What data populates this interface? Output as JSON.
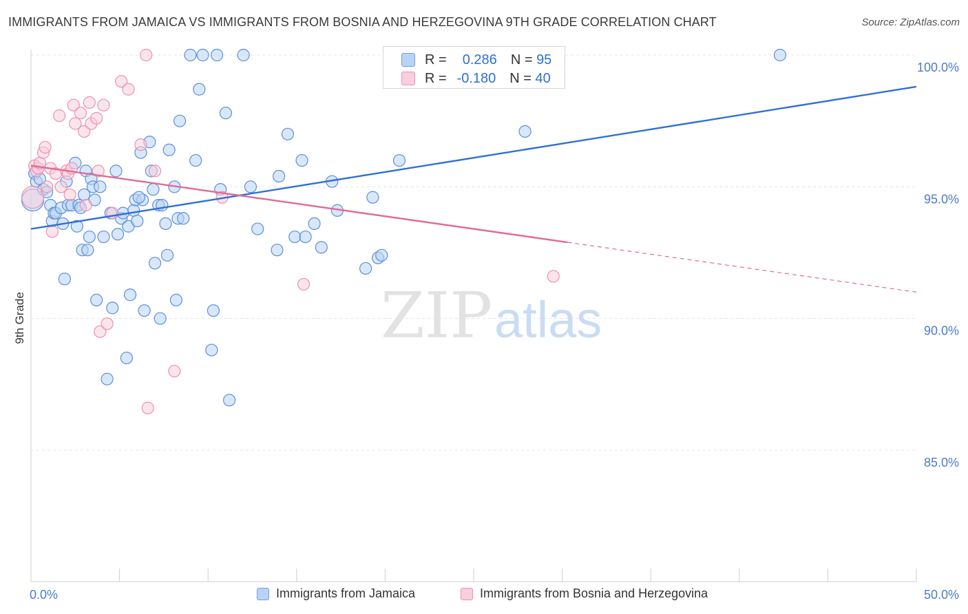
{
  "title": "IMMIGRANTS FROM JAMAICA VS IMMIGRANTS FROM BOSNIA AND HERZEGOVINA 9TH GRADE CORRELATION CHART",
  "source": "Source: ZipAtlas.com",
  "watermark": {
    "zip": "ZIP",
    "atlas": "atlas"
  },
  "stats": {
    "r_label": "R =",
    "n_label": "N =",
    "rows": [
      {
        "r": "0.286",
        "n": "95",
        "color": "#6c9fe6",
        "fill": "#b8d3f5"
      },
      {
        "r": "-0.180",
        "n": "40",
        "color": "#ee8fae",
        "fill": "#f8cfdc"
      }
    ]
  },
  "chart_data": {
    "type": "scatter",
    "title": "IMMIGRANTS FROM JAMAICA VS IMMIGRANTS FROM BOSNIA AND HERZEGOVINA 9TH GRADE CORRELATION CHART",
    "xlabel": "",
    "ylabel": "9th Grade",
    "xlim": [
      0,
      50
    ],
    "ylim": [
      80.2,
      100.6
    ],
    "x_tick_labels": [
      "0.0%",
      "50.0%"
    ],
    "y_ticks": [
      85,
      90,
      95,
      100
    ],
    "y_tick_labels": [
      "85.0%",
      "90.0%",
      "95.0%",
      "100.0%"
    ],
    "grid": true,
    "legend_position": "bottom",
    "series": [
      {
        "name": "Immigrants from Jamaica",
        "color": "#5b8fd8",
        "fill": "#b8d3f5",
        "trend": {
          "x0": 0,
          "y0": 93.4,
          "x1": 50,
          "y1": 98.8,
          "dashed_from": null
        },
        "points": [
          [
            0.1,
            94.5
          ],
          [
            0.2,
            95.5
          ],
          [
            0.3,
            95.2
          ],
          [
            0.5,
            95.3
          ],
          [
            0.7,
            94.9
          ],
          [
            0.9,
            94.8
          ],
          [
            1.1,
            94.3
          ],
          [
            1.2,
            93.7
          ],
          [
            1.3,
            94.0
          ],
          [
            1.4,
            94.0
          ],
          [
            1.7,
            94.2
          ],
          [
            1.8,
            93.6
          ],
          [
            1.9,
            91.5
          ],
          [
            2.1,
            94.3
          ],
          [
            2.3,
            94.3
          ],
          [
            2.5,
            95.9
          ],
          [
            2.6,
            93.5
          ],
          [
            2.7,
            94.3
          ],
          [
            2.8,
            94.2
          ],
          [
            2.9,
            92.6
          ],
          [
            3.0,
            94.7
          ],
          [
            3.1,
            95.6
          ],
          [
            3.2,
            92.6
          ],
          [
            3.3,
            93.1
          ],
          [
            3.4,
            95.3
          ],
          [
            3.5,
            95.0
          ],
          [
            3.6,
            94.5
          ],
          [
            3.7,
            90.7
          ],
          [
            3.9,
            95.0
          ],
          [
            4.1,
            93.1
          ],
          [
            4.3,
            87.7
          ],
          [
            4.5,
            94.0
          ],
          [
            4.6,
            90.4
          ],
          [
            4.8,
            95.6
          ],
          [
            4.9,
            93.2
          ],
          [
            5.1,
            93.8
          ],
          [
            5.2,
            94.0
          ],
          [
            5.4,
            88.5
          ],
          [
            5.5,
            93.5
          ],
          [
            5.6,
            90.9
          ],
          [
            5.8,
            94.1
          ],
          [
            5.9,
            94.5
          ],
          [
            6.0,
            93.7
          ],
          [
            6.2,
            96.3
          ],
          [
            6.3,
            94.5
          ],
          [
            6.4,
            90.3
          ],
          [
            6.7,
            96.7
          ],
          [
            6.8,
            95.6
          ],
          [
            6.9,
            94.9
          ],
          [
            7.0,
            92.1
          ],
          [
            7.2,
            94.3
          ],
          [
            7.3,
            90.0
          ],
          [
            7.4,
            94.3
          ],
          [
            7.6,
            93.6
          ],
          [
            7.7,
            92.4
          ],
          [
            7.8,
            96.4
          ],
          [
            8.1,
            95.0
          ],
          [
            8.2,
            90.7
          ],
          [
            8.3,
            93.8
          ],
          [
            8.4,
            97.5
          ],
          [
            8.6,
            93.8
          ],
          [
            9.0,
            100.0
          ],
          [
            9.3,
            96.0
          ],
          [
            9.5,
            98.7
          ],
          [
            9.7,
            100.0
          ],
          [
            10.2,
            88.8
          ],
          [
            10.3,
            90.3
          ],
          [
            10.5,
            100.0
          ],
          [
            10.7,
            94.9
          ],
          [
            11.0,
            97.8
          ],
          [
            11.2,
            86.9
          ],
          [
            12.0,
            100.0
          ],
          [
            12.4,
            95.0
          ],
          [
            12.8,
            93.4
          ],
          [
            13.9,
            92.6
          ],
          [
            14.0,
            95.4
          ],
          [
            14.5,
            97.0
          ],
          [
            14.9,
            93.1
          ],
          [
            15.3,
            96.0
          ],
          [
            15.5,
            93.1
          ],
          [
            16.0,
            93.6
          ],
          [
            16.4,
            92.7
          ],
          [
            17.0,
            95.2
          ],
          [
            17.3,
            94.1
          ],
          [
            18.9,
            91.9
          ],
          [
            19.3,
            94.6
          ],
          [
            19.6,
            92.3
          ],
          [
            19.8,
            92.4
          ],
          [
            20.8,
            96.0
          ],
          [
            21.0,
            100.0
          ],
          [
            25.6,
            100.0
          ],
          [
            27.9,
            97.1
          ],
          [
            42.3,
            100.0
          ],
          [
            2.0,
            95.2
          ],
          [
            6.1,
            94.6
          ]
        ]
      },
      {
        "name": "Immigrants from Bosnia and Herzegovina",
        "color": "#ee8fae",
        "fill": "#f8cfdc",
        "trend": {
          "x0": 0,
          "y0": 95.8,
          "x1": 50,
          "y1": 91.0,
          "dashed_from": 30.3
        },
        "points": [
          [
            0.1,
            94.6
          ],
          [
            0.2,
            95.8
          ],
          [
            0.3,
            95.6
          ],
          [
            0.4,
            95.7
          ],
          [
            0.5,
            95.9
          ],
          [
            0.7,
            96.3
          ],
          [
            0.8,
            96.5
          ],
          [
            0.9,
            95.0
          ],
          [
            1.1,
            95.7
          ],
          [
            1.2,
            93.3
          ],
          [
            1.4,
            95.5
          ],
          [
            1.6,
            97.7
          ],
          [
            1.7,
            95.0
          ],
          [
            2.0,
            95.6
          ],
          [
            2.1,
            95.5
          ],
          [
            2.2,
            94.7
          ],
          [
            2.3,
            95.7
          ],
          [
            2.4,
            98.1
          ],
          [
            2.5,
            97.4
          ],
          [
            2.8,
            97.8
          ],
          [
            3.0,
            97.1
          ],
          [
            3.1,
            94.3
          ],
          [
            3.3,
            98.2
          ],
          [
            3.4,
            97.4
          ],
          [
            3.7,
            97.6
          ],
          [
            3.8,
            95.6
          ],
          [
            3.9,
            89.5
          ],
          [
            4.1,
            98.1
          ],
          [
            4.3,
            89.8
          ],
          [
            4.6,
            94.0
          ],
          [
            5.1,
            99.0
          ],
          [
            5.5,
            98.7
          ],
          [
            6.2,
            96.6
          ],
          [
            6.5,
            100.0
          ],
          [
            6.6,
            86.6
          ],
          [
            7.0,
            95.6
          ],
          [
            8.1,
            88.0
          ],
          [
            10.8,
            94.6
          ],
          [
            15.4,
            91.3
          ],
          [
            29.5,
            91.6
          ]
        ]
      }
    ]
  }
}
